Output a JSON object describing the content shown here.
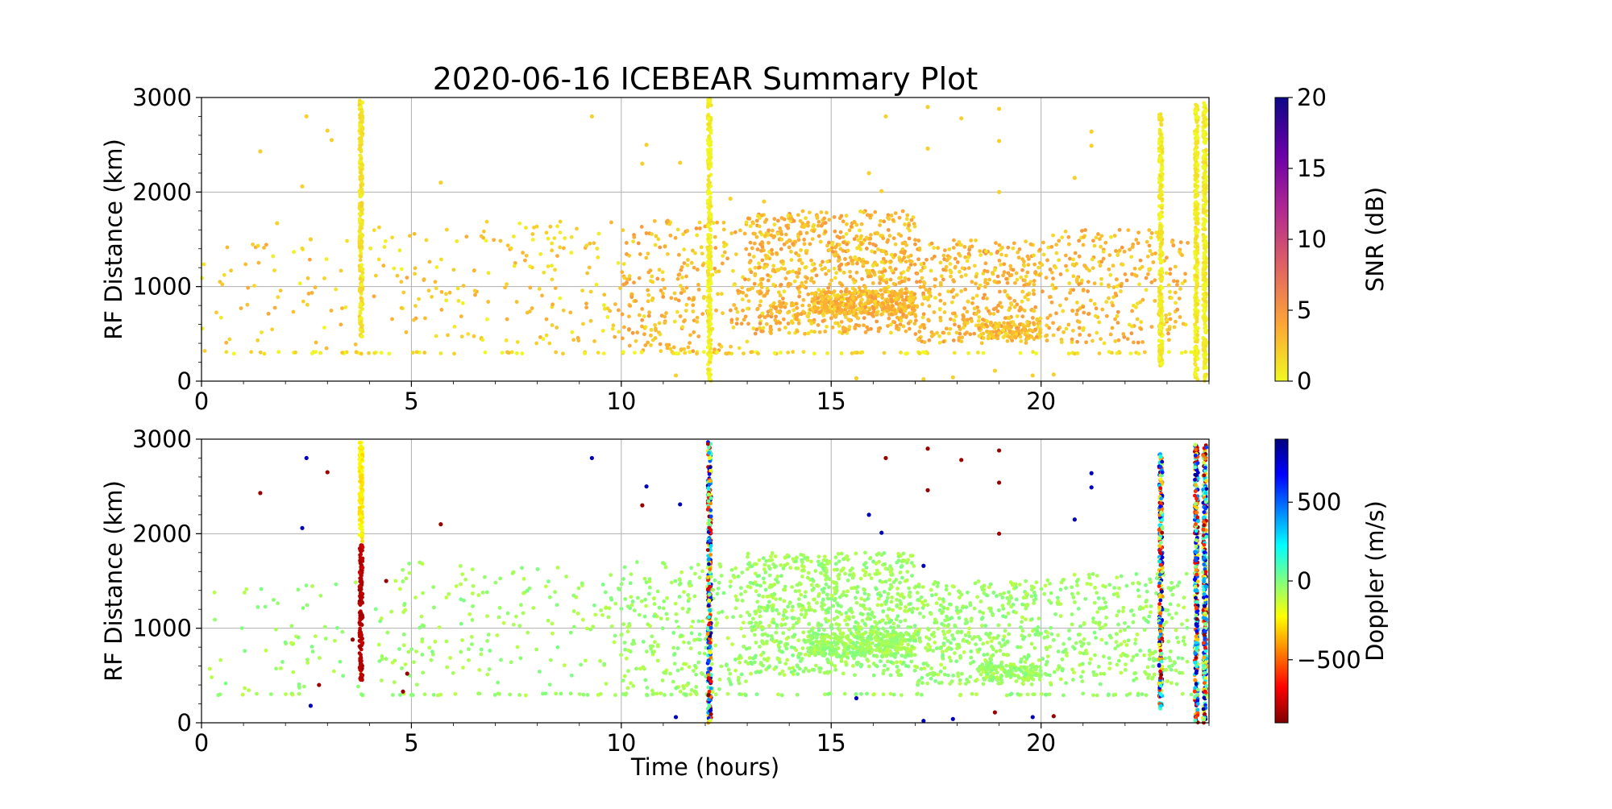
{
  "figure": {
    "title": "2020-06-16 ICEBEAR Summary Plot",
    "xlabel": "Time (hours)"
  },
  "chart_data": [
    {
      "type": "scatter",
      "name": "snr-panel",
      "xlabel": "",
      "ylabel": "RF Distance (km)",
      "xlim": [
        0,
        24
      ],
      "ylim": [
        0,
        3000
      ],
      "x_ticks": [
        0,
        5,
        10,
        15,
        20
      ],
      "y_ticks": [
        0,
        1000,
        2000,
        3000
      ],
      "grid": true,
      "colorbar": {
        "label": "SNR (dB)",
        "range": [
          0,
          20
        ],
        "ticks": [
          0,
          5,
          10,
          15,
          20
        ],
        "tick_labels": [
          "0",
          "5",
          "10",
          "15",
          "20"
        ],
        "colormap": "plasma_r",
        "colors": [
          "#f0f921",
          "#fca636",
          "#e16462",
          "#b12a90",
          "#6a00a8",
          "#0d0887"
        ]
      },
      "bands": [
        {
          "x": 3.8,
          "y_range": [
            450,
            2970
          ],
          "color_value": 1
        },
        {
          "x": 12.1,
          "y_range": [
            0,
            3000
          ],
          "color_value": 0.3
        },
        {
          "x": 22.85,
          "y_range": [
            150,
            2850
          ],
          "color_value": 0.5
        },
        {
          "x": 23.7,
          "y_range": [
            0,
            2950
          ],
          "color_value": 0.5
        },
        {
          "x": 23.9,
          "y_range": [
            0,
            2950
          ],
          "color_value": 0.5
        }
      ],
      "clusters": [
        {
          "x_range": [
            0,
            3.8
          ],
          "y_range": [
            300,
            1500
          ],
          "count": 60,
          "color_value": 2
        },
        {
          "x_range": [
            4,
            10
          ],
          "y_range": [
            400,
            1700
          ],
          "count": 180,
          "color_value": 2
        },
        {
          "x_range": [
            10,
            13
          ],
          "y_range": [
            300,
            1700
          ],
          "count": 260,
          "color_value": 3
        },
        {
          "x_range": [
            13,
            17
          ],
          "y_range": [
            500,
            1800
          ],
          "count": 800,
          "color_value": 3
        },
        {
          "x_range": [
            14.5,
            17
          ],
          "y_range": [
            700,
            950
          ],
          "count": 350,
          "color_value": 3
        },
        {
          "x_range": [
            17,
            20
          ],
          "y_range": [
            400,
            1500
          ],
          "count": 400,
          "color_value": 3
        },
        {
          "x_range": [
            18.5,
            20
          ],
          "y_range": [
            450,
            620
          ],
          "count": 120,
          "color_value": 3
        },
        {
          "x_range": [
            20,
            23.5
          ],
          "y_range": [
            400,
            1600
          ],
          "count": 300,
          "color_value": 3
        },
        {
          "x_range": [
            0.3,
            24
          ],
          "y_range": [
            290,
            310
          ],
          "count": 120,
          "color_value": 1
        }
      ],
      "sparse_points": [
        [
          2.5,
          2800
        ],
        [
          3.0,
          2650
        ],
        [
          1.4,
          2430
        ],
        [
          2.4,
          2060
        ],
        [
          5.7,
          2100
        ],
        [
          9.3,
          2800
        ],
        [
          10.6,
          2500
        ],
        [
          10.5,
          2300
        ],
        [
          11.4,
          2310
        ],
        [
          16.3,
          2800
        ],
        [
          17.3,
          2900
        ],
        [
          18.1,
          2780
        ],
        [
          19.0,
          2880
        ],
        [
          17.3,
          2460
        ],
        [
          15.9,
          2200
        ],
        [
          16.2,
          2010
        ],
        [
          19.0,
          2540
        ],
        [
          21.2,
          2640
        ],
        [
          21.2,
          2490
        ],
        [
          19.0,
          2000
        ],
        [
          20.8,
          2150
        ],
        [
          3.1,
          2550
        ],
        [
          1.8,
          1670
        ],
        [
          2.6,
          1500
        ],
        [
          15.6,
          30
        ],
        [
          17.2,
          20
        ],
        [
          17.9,
          40
        ],
        [
          18.9,
          110
        ],
        [
          19.8,
          60
        ],
        [
          20.3,
          70
        ],
        [
          11.3,
          60
        ],
        [
          12.6,
          1930
        ],
        [
          13.4,
          1900
        ]
      ]
    },
    {
      "type": "scatter",
      "name": "doppler-panel",
      "xlabel": "Time (hours)",
      "ylabel": "RF Distance (km)",
      "xlim": [
        0,
        24
      ],
      "ylim": [
        0,
        3000
      ],
      "x_ticks": [
        0,
        5,
        10,
        15,
        20
      ],
      "y_ticks": [
        0,
        1000,
        2000,
        3000
      ],
      "grid": true,
      "colorbar": {
        "label": "Doppler (m/s)",
        "range": [
          -900,
          900
        ],
        "ticks": [
          -500,
          0,
          500
        ],
        "tick_labels": [
          "−500",
          "0",
          "500"
        ],
        "colormap": "jet_r",
        "colors": [
          "#7f0000",
          "#ff0000",
          "#ff8000",
          "#ffff00",
          "#80ff80",
          "#00ffff",
          "#0080ff",
          "#0000ff",
          "#00007f"
        ]
      },
      "bands": [
        {
          "x": 3.8,
          "y_range": [
            1900,
            2970
          ],
          "color_value": -250
        },
        {
          "x": 3.8,
          "y_range": [
            450,
            1880
          ],
          "color_value": -800
        },
        {
          "x": 12.1,
          "y_range": [
            0,
            3000
          ],
          "color_value": "mixed"
        },
        {
          "x": 22.85,
          "y_range": [
            150,
            2850
          ],
          "color_value": "mixed"
        },
        {
          "x": 23.7,
          "y_range": [
            0,
            2950
          ],
          "color_value": "mixed"
        },
        {
          "x": 23.9,
          "y_range": [
            0,
            2950
          ],
          "color_value": "mixed"
        }
      ],
      "clusters": [
        {
          "x_range": [
            0,
            3.8
          ],
          "y_range": [
            300,
            1500
          ],
          "count": 60,
          "color_value": -50
        },
        {
          "x_range": [
            4,
            10
          ],
          "y_range": [
            400,
            1700
          ],
          "count": 180,
          "color_value": -50
        },
        {
          "x_range": [
            10,
            13
          ],
          "y_range": [
            300,
            1700
          ],
          "count": 260,
          "color_value": -50
        },
        {
          "x_range": [
            13,
            17
          ],
          "y_range": [
            500,
            1800
          ],
          "count": 800,
          "color_value": -50
        },
        {
          "x_range": [
            14.5,
            17
          ],
          "y_range": [
            700,
            950
          ],
          "count": 350,
          "color_value": -50
        },
        {
          "x_range": [
            17,
            20
          ],
          "y_range": [
            400,
            1500
          ],
          "count": 400,
          "color_value": -50
        },
        {
          "x_range": [
            18.5,
            20
          ],
          "y_range": [
            450,
            620
          ],
          "count": 120,
          "color_value": -50
        },
        {
          "x_range": [
            20,
            23.5
          ],
          "y_range": [
            400,
            1600
          ],
          "count": 300,
          "color_value": -50
        },
        {
          "x_range": [
            0.3,
            24
          ],
          "y_range": [
            290,
            310
          ],
          "count": 120,
          "color_value": -50
        }
      ],
      "sparse_points": [
        [
          2.5,
          2800,
          800
        ],
        [
          3.0,
          2650,
          -850
        ],
        [
          1.4,
          2430,
          -850
        ],
        [
          2.4,
          2060,
          800
        ],
        [
          5.7,
          2100,
          -850
        ],
        [
          9.3,
          2800,
          800
        ],
        [
          10.6,
          2500,
          800
        ],
        [
          10.5,
          2300,
          -850
        ],
        [
          11.4,
          2310,
          800
        ],
        [
          16.3,
          2800,
          -850
        ],
        [
          17.3,
          2900,
          -850
        ],
        [
          18.1,
          2780,
          -850
        ],
        [
          19.0,
          2880,
          -850
        ],
        [
          17.3,
          2460,
          -850
        ],
        [
          15.9,
          2200,
          800
        ],
        [
          16.2,
          2010,
          800
        ],
        [
          19.0,
          2540,
          -850
        ],
        [
          21.2,
          2640,
          800
        ],
        [
          21.2,
          2490,
          800
        ],
        [
          19.0,
          2000,
          -850
        ],
        [
          20.8,
          2150,
          800
        ],
        [
          2.6,
          180,
          800
        ],
        [
          4.8,
          330,
          -850
        ],
        [
          2.8,
          400,
          -850
        ],
        [
          3.6,
          880,
          -850
        ],
        [
          4.4,
          1500,
          -850
        ],
        [
          17.2,
          1660,
          800
        ],
        [
          15.6,
          260,
          800
        ],
        [
          17.2,
          20,
          800
        ],
        [
          17.9,
          40,
          800
        ],
        [
          18.9,
          110,
          -850
        ],
        [
          19.8,
          60,
          800
        ],
        [
          20.3,
          70,
          -850
        ],
        [
          11.3,
          60,
          800
        ],
        [
          4.9,
          520,
          -850
        ]
      ]
    }
  ]
}
